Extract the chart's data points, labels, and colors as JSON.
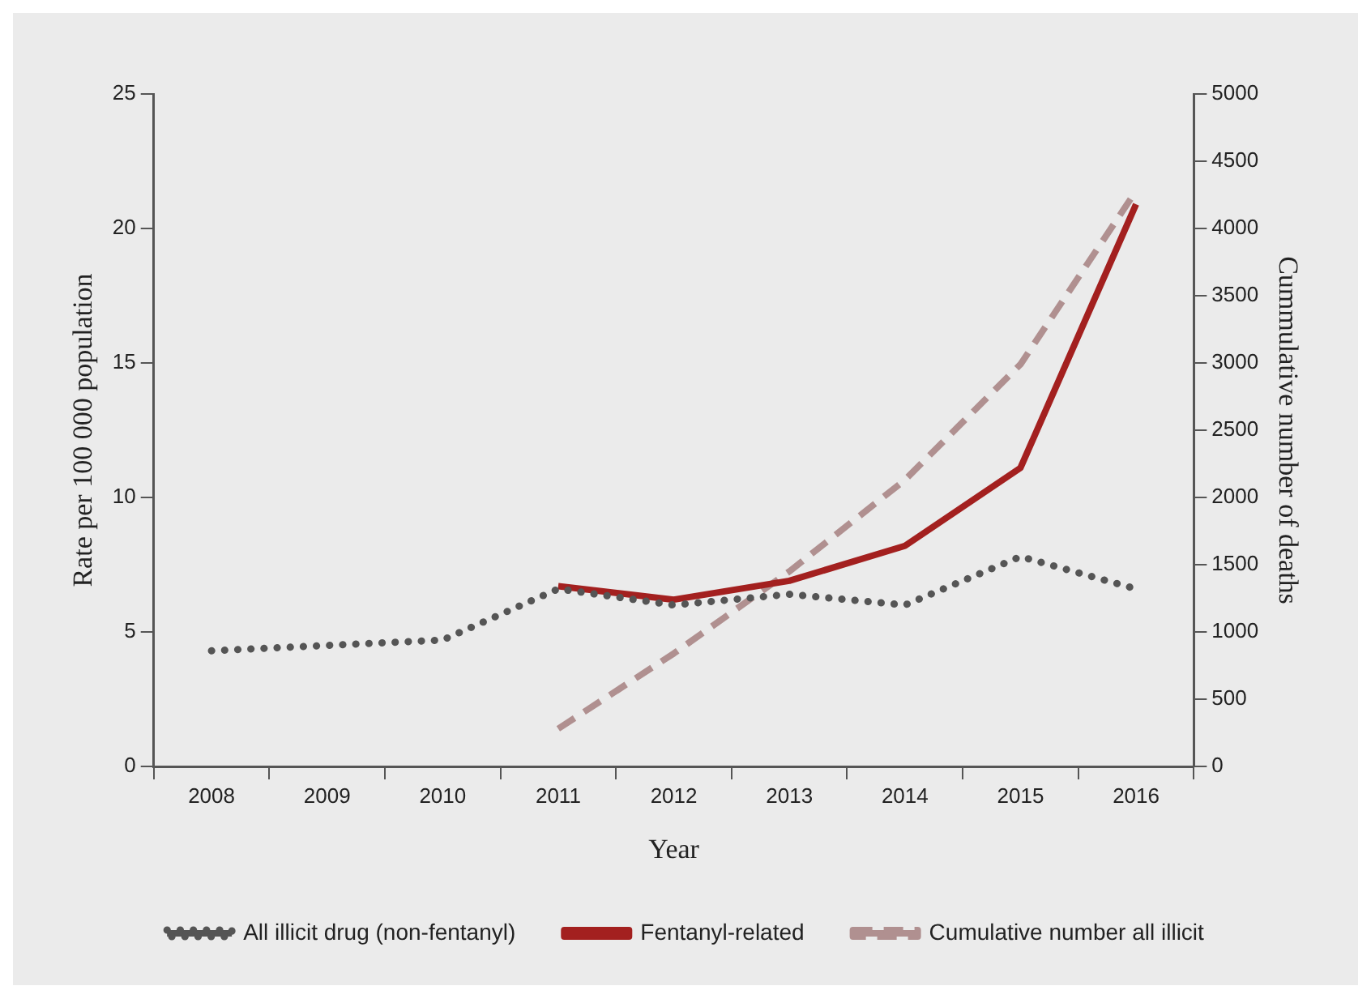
{
  "chart_data": {
    "type": "line",
    "xlabel": "Year",
    "ylabel": "Rate per 100 000 population",
    "y2label": "Cummulative number of deaths",
    "categories": [
      "2008",
      "2009",
      "2010",
      "2011",
      "2012",
      "2013",
      "2014",
      "2015",
      "2016"
    ],
    "series": [
      {
        "name": "All illicit drug (non-fentanyl)",
        "color": "#555555",
        "line_style": "dotted",
        "values": [
          4.3,
          4.5,
          4.7,
          6.6,
          6.0,
          6.4,
          6.0,
          7.8,
          6.6
        ]
      },
      {
        "name": "Fentanyl-related",
        "color": "#a3201f",
        "line_style": "solid",
        "values": [
          null,
          null,
          null,
          6.7,
          6.2,
          6.9,
          8.2,
          11.1,
          20.9
        ]
      },
      {
        "name": "Cumulative number all illicit",
        "color": "#b09090",
        "line_style": "dashed",
        "axis": "y2",
        "values": [
          null,
          null,
          null,
          280,
          840,
          1450,
          2130,
          2990,
          4280
        ]
      }
    ],
    "ylim": [
      0,
      25
    ],
    "yticks": [
      0,
      5,
      10,
      15,
      20,
      25
    ],
    "y2lim": [
      0,
      5000
    ],
    "y2ticks": [
      0,
      500,
      1000,
      1500,
      2000,
      2500,
      3000,
      3500,
      4000,
      4500,
      5000
    ],
    "grid": false,
    "legend": "bottom",
    "marker": "none"
  }
}
